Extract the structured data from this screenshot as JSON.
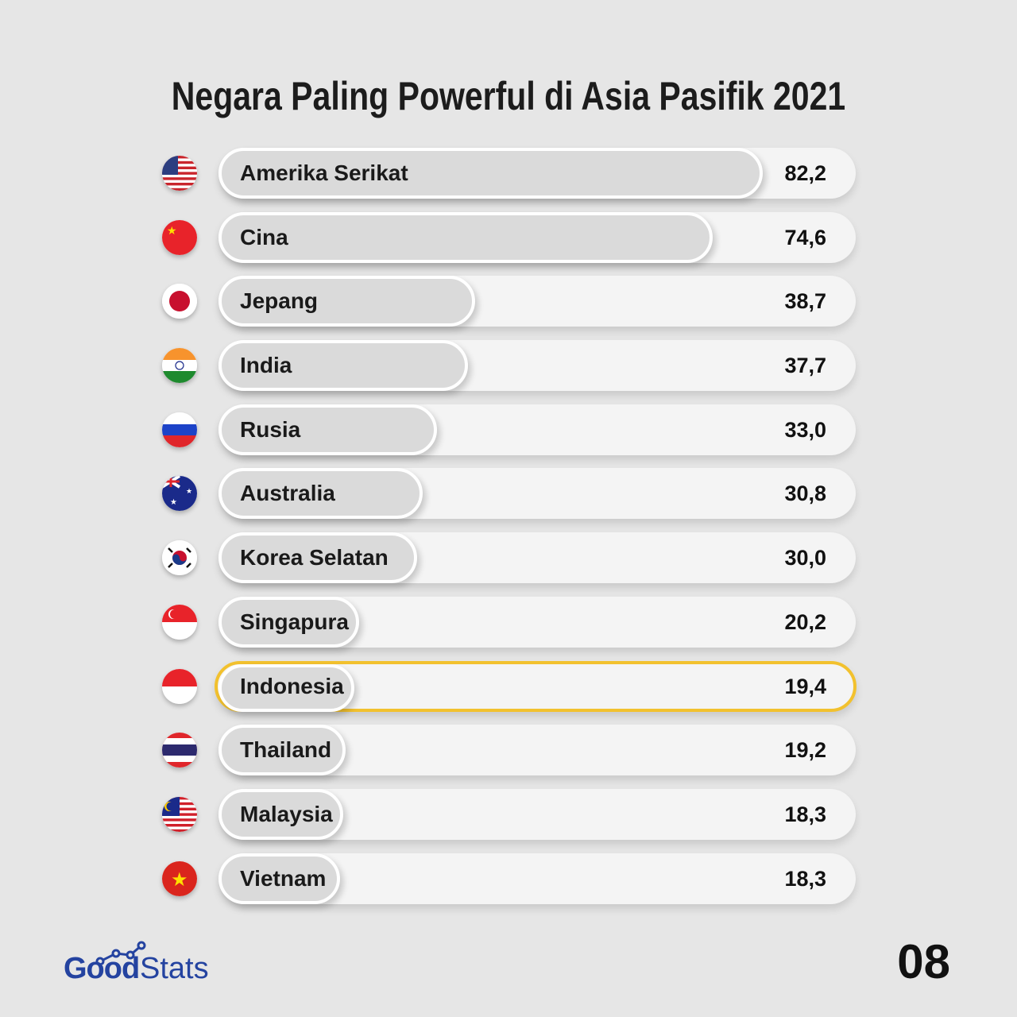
{
  "chart_data": {
    "type": "bar",
    "orientation": "horizontal",
    "title": "Negara Paling Powerful di Asia Pasifik 2021",
    "categories": [
      "Amerika Serikat",
      "Cina",
      "Jepang",
      "India",
      "Rusia",
      "Australia",
      "Korea Selatan",
      "Singapura",
      "Indonesia",
      "Thailand",
      "Malaysia",
      "Vietnam"
    ],
    "values": [
      82.2,
      74.6,
      38.7,
      37.7,
      33.0,
      30.8,
      30.0,
      20.2,
      19.4,
      19.2,
      18.3,
      18.3
    ],
    "value_labels": [
      "82,2",
      "74,6",
      "38,7",
      "37,7",
      "33,0",
      "30,8",
      "30,0",
      "20,2",
      "19,4",
      "19,2",
      "18,3",
      "18,3"
    ],
    "flags": [
      "us",
      "cn",
      "jp",
      "in",
      "ru",
      "au",
      "kr",
      "sg",
      "id",
      "th",
      "my",
      "vn"
    ],
    "highlight": "Indonesia",
    "highlight_color": "#f2c12e"
  },
  "footer": {
    "brand_good": "Good",
    "brand_stats": "Stats",
    "page_number": "08",
    "brand_color": "#2443a0"
  }
}
